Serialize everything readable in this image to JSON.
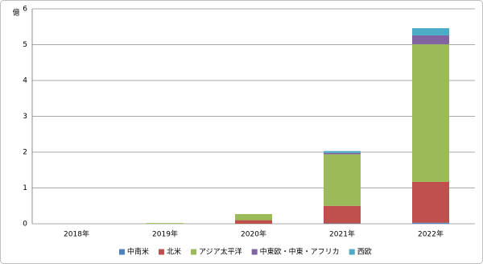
{
  "chart_data": {
    "type": "stacked-bar",
    "y_label": "億",
    "categories": [
      "2018年",
      "2019年",
      "2020年",
      "2021年",
      "2022年"
    ],
    "series": [
      {
        "name": "中南米",
        "color": "#4f81bd",
        "values": [
          0,
          0,
          0,
          0.01,
          0.03
        ]
      },
      {
        "name": "北米",
        "color": "#c0504d",
        "values": [
          0,
          0,
          0.1,
          0.49,
          1.14
        ]
      },
      {
        "name": "アジア太平洋",
        "color": "#9bbb59",
        "values": [
          0,
          0.02,
          0.17,
          1.44,
          3.84
        ]
      },
      {
        "name": "中東欧・中東・アフリカ",
        "color": "#8064a2",
        "values": [
          0,
          0,
          0,
          0.04,
          0.25
        ]
      },
      {
        "name": "西欧",
        "color": "#4bacc6",
        "values": [
          0,
          0,
          0,
          0.05,
          0.2
        ]
      }
    ],
    "ylim": [
      0,
      6
    ],
    "yticks": [
      0,
      1,
      2,
      3,
      4,
      5,
      6
    ],
    "grid": true,
    "legend": "bottom"
  }
}
